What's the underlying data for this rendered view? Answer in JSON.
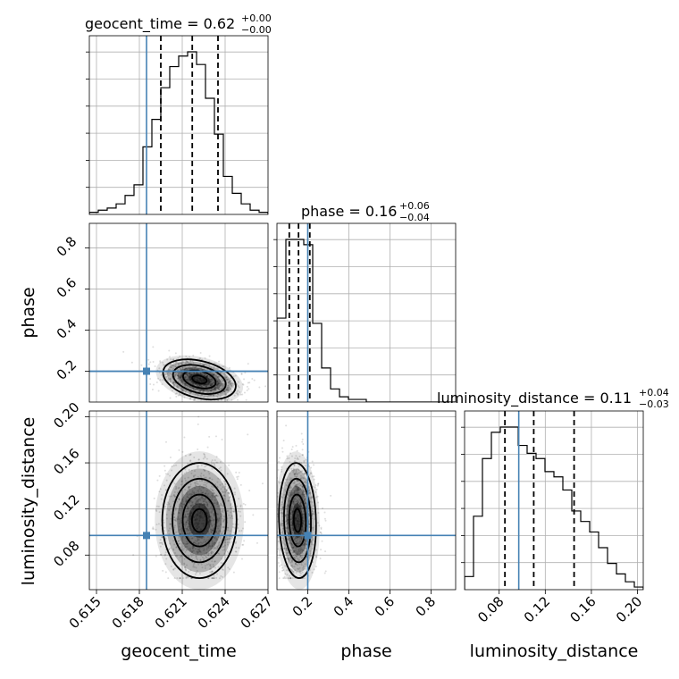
{
  "chart_data": {
    "type": "corner",
    "parameters": [
      {
        "name": "geocent_time",
        "title": "geocent_time = 0.62",
        "title_sup": "+0.00",
        "title_sub": "−0.00",
        "range": [
          0.6145,
          0.627
        ],
        "ticks": [
          0.615,
          0.618,
          0.621,
          0.624,
          0.627
        ],
        "tick_labels": [
          "0.615",
          "0.618",
          "0.621",
          "0.624",
          "0.627"
        ],
        "quantiles": [
          0.6195,
          0.6217,
          0.6235
        ],
        "truth": 0.6185
      },
      {
        "name": "phase",
        "title": "phase = 0.16",
        "title_sup": "+0.06",
        "title_sub": "−0.04",
        "range": [
          0.05,
          0.92
        ],
        "ticks": [
          0.2,
          0.4,
          0.6,
          0.8
        ],
        "tick_labels": [
          "0.2",
          "0.4",
          "0.6",
          "0.8"
        ],
        "quantiles": [
          0.11,
          0.155,
          0.21
        ],
        "truth": 0.2
      },
      {
        "name": "luminosity_distance",
        "title": "luminosity_distance = 0.11",
        "title_sup": "+0.04",
        "title_sub": "−0.03",
        "range": [
          0.05,
          0.205
        ],
        "ticks": [
          0.08,
          0.12,
          0.16,
          0.2
        ],
        "tick_labels": [
          "0.08",
          "0.12",
          "0.16",
          "0.20"
        ],
        "quantiles": [
          0.085,
          0.11,
          0.145
        ],
        "truth": 0.097
      }
    ],
    "ylabels": {
      "phase": "phase",
      "luminosity_distance": "luminosity_distance"
    },
    "phase_yticks": [
      0.2,
      0.4,
      0.6,
      0.8
    ],
    "phase_ytick_labels": [
      "0.2",
      "0.4",
      "0.6",
      "0.8"
    ],
    "dist_yticks": [
      0.08,
      0.12,
      0.16,
      0.2
    ],
    "dist_ytick_labels": [
      "0.08",
      "0.12",
      "0.16",
      "0.20"
    ],
    "hist_geocent": {
      "edges_start": 0.6145,
      "bin": 0.000625,
      "counts": [
        1,
        2,
        3,
        5,
        9,
        14,
        32,
        45,
        60,
        70,
        75,
        77,
        71,
        55,
        38,
        18,
        10,
        5,
        2,
        1
      ]
    },
    "hist_phase": {
      "edges_start": 0.05,
      "bin": 0.0435,
      "counts": [
        32,
        62,
        62,
        60,
        30,
        13,
        5,
        2,
        1,
        1,
        0,
        0,
        0,
        0,
        0,
        0,
        0,
        0,
        0,
        0
      ]
    },
    "hist_dist": {
      "edges_start": 0.05,
      "bin": 0.00775,
      "counts": [
        5,
        28,
        50,
        60,
        62,
        62,
        55,
        52,
        50,
        45,
        43,
        38,
        30,
        26,
        22,
        16,
        10,
        6,
        3,
        1
      ]
    },
    "grid": true
  }
}
